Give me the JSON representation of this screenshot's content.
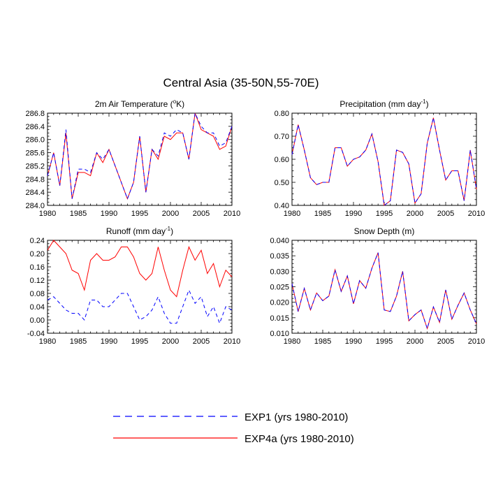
{
  "figure": {
    "title": "Central Asia (35-50N,55-70E)"
  },
  "legend": {
    "entries": [
      {
        "label": "EXP1 (yrs 1980-2010)",
        "color": "#0000ff",
        "style": "dashed"
      },
      {
        "label": "EXP4a (yrs 1980-2010)",
        "color": "#ff0000",
        "style": "solid"
      }
    ]
  },
  "chart_data": [
    {
      "type": "line",
      "title_main": "2m Air Temperature (",
      "title_sup": "o",
      "title_after": "K)",
      "xlim": [
        1980,
        2010
      ],
      "ylim": [
        284.0,
        286.8
      ],
      "xticks": [
        1980,
        1985,
        1990,
        1995,
        2000,
        2005,
        2010
      ],
      "yticks": [
        "284.0",
        "284.4",
        "284.8",
        "285.2",
        "285.6",
        "286.0",
        "286.4",
        "286.8"
      ],
      "x": [
        1980,
        1981,
        1982,
        1983,
        1984,
        1985,
        1986,
        1987,
        1988,
        1989,
        1990,
        1991,
        1992,
        1993,
        1994,
        1995,
        1996,
        1997,
        1998,
        1999,
        2000,
        2001,
        2002,
        2003,
        2004,
        2005,
        2006,
        2007,
        2008,
        2009,
        2010
      ],
      "series": [
        {
          "name": "EXP1 (yrs 1980-2010)",
          "color": "#0000ff",
          "dashed": true,
          "values": [
            284.9,
            285.6,
            284.6,
            286.3,
            284.2,
            285.1,
            285.1,
            285.0,
            285.6,
            285.4,
            285.7,
            285.2,
            284.7,
            284.2,
            284.7,
            286.1,
            284.4,
            285.7,
            285.5,
            286.2,
            286.1,
            286.3,
            286.2,
            285.4,
            286.8,
            286.4,
            286.2,
            286.2,
            285.8,
            285.9,
            286.4
          ]
        },
        {
          "name": "EXP4a (yrs 1980-2010)",
          "color": "#ff0000",
          "dashed": false,
          "values": [
            284.9,
            285.6,
            284.6,
            286.2,
            284.2,
            285.0,
            285.0,
            284.9,
            285.6,
            285.3,
            285.7,
            285.2,
            284.7,
            284.2,
            284.7,
            286.1,
            284.4,
            285.7,
            285.4,
            286.1,
            286.0,
            286.2,
            286.2,
            285.4,
            286.8,
            286.3,
            286.2,
            286.1,
            285.7,
            285.8,
            286.4
          ]
        }
      ]
    },
    {
      "type": "line",
      "title_main": "Precipitation (mm day",
      "title_sup": "-1",
      "title_after": ")",
      "xlim": [
        1980,
        2010
      ],
      "ylim": [
        0.4,
        0.8
      ],
      "xticks": [
        1980,
        1985,
        1990,
        1995,
        2000,
        2005,
        2010
      ],
      "yticks": [
        "0.40",
        "0.50",
        "0.60",
        "0.70",
        "0.80"
      ],
      "x": [
        1980,
        1981,
        1982,
        1983,
        1984,
        1985,
        1986,
        1987,
        1988,
        1989,
        1990,
        1991,
        1992,
        1993,
        1994,
        1995,
        1996,
        1997,
        1998,
        1999,
        2000,
        2001,
        2002,
        2003,
        2004,
        2005,
        2006,
        2007,
        2008,
        2009,
        2010
      ],
      "series": [
        {
          "name": "EXP1 (yrs 1980-2010)",
          "color": "#0000ff",
          "dashed": true,
          "values": [
            0.62,
            0.75,
            0.64,
            0.52,
            0.49,
            0.5,
            0.5,
            0.65,
            0.65,
            0.57,
            0.6,
            0.61,
            0.64,
            0.71,
            0.59,
            0.4,
            0.42,
            0.64,
            0.63,
            0.58,
            0.41,
            0.45,
            0.67,
            0.78,
            0.64,
            0.51,
            0.55,
            0.55,
            0.42,
            0.64,
            0.47
          ]
        },
        {
          "name": "EXP4a (yrs 1980-2010)",
          "color": "#ff0000",
          "dashed": false,
          "values": [
            0.62,
            0.75,
            0.64,
            0.52,
            0.49,
            0.5,
            0.5,
            0.65,
            0.65,
            0.57,
            0.6,
            0.61,
            0.64,
            0.71,
            0.59,
            0.4,
            0.42,
            0.64,
            0.63,
            0.58,
            0.41,
            0.45,
            0.67,
            0.78,
            0.64,
            0.51,
            0.55,
            0.55,
            0.42,
            0.64,
            0.47
          ]
        }
      ]
    },
    {
      "type": "line",
      "title_main": "Runoff (mm day",
      "title_sup": "-1",
      "title_after": ")",
      "xlim": [
        1980,
        2010
      ],
      "ylim": [
        -0.04,
        0.24
      ],
      "xticks": [
        1980,
        1985,
        1990,
        1995,
        2000,
        2005,
        2010
      ],
      "yticks": [
        "-0.04",
        "0.00",
        "0.04",
        "0.08",
        "0.12",
        "0.16",
        "0.20",
        "0.24"
      ],
      "x": [
        1980,
        1981,
        1982,
        1983,
        1984,
        1985,
        1986,
        1987,
        1988,
        1989,
        1990,
        1991,
        1992,
        1993,
        1994,
        1995,
        1996,
        1997,
        1998,
        1999,
        2000,
        2001,
        2002,
        2003,
        2004,
        2005,
        2006,
        2007,
        2008,
        2009,
        2010
      ],
      "series": [
        {
          "name": "EXP1 (yrs 1980-2010)",
          "color": "#0000ff",
          "dashed": true,
          "values": [
            0.06,
            0.07,
            0.05,
            0.03,
            0.02,
            0.02,
            0.0,
            0.06,
            0.06,
            0.04,
            0.04,
            0.06,
            0.08,
            0.08,
            0.04,
            0.0,
            0.01,
            0.03,
            0.07,
            0.02,
            -0.01,
            -0.01,
            0.04,
            0.09,
            0.05,
            0.07,
            0.01,
            0.04,
            -0.01,
            0.04,
            0.03
          ]
        },
        {
          "name": "EXP4a (yrs 1980-2010)",
          "color": "#ff0000",
          "dashed": false,
          "values": [
            0.21,
            0.24,
            0.22,
            0.2,
            0.15,
            0.14,
            0.09,
            0.18,
            0.2,
            0.18,
            0.18,
            0.19,
            0.22,
            0.22,
            0.19,
            0.14,
            0.12,
            0.14,
            0.22,
            0.15,
            0.09,
            0.07,
            0.15,
            0.22,
            0.18,
            0.21,
            0.14,
            0.17,
            0.1,
            0.15,
            0.13
          ]
        }
      ]
    },
    {
      "type": "line",
      "title_main": "Snow Depth (m)",
      "title_sup": "",
      "title_after": "",
      "xlim": [
        1980,
        2010
      ],
      "ylim": [
        0.01,
        0.04
      ],
      "xticks": [
        1980,
        1985,
        1990,
        1995,
        2000,
        2005,
        2010
      ],
      "yticks": [
        "0.010",
        "0.015",
        "0.020",
        "0.025",
        "0.030",
        "0.035",
        "0.040"
      ],
      "x": [
        1980,
        1981,
        1982,
        1983,
        1984,
        1985,
        1986,
        1987,
        1988,
        1989,
        1990,
        1991,
        1992,
        1993,
        1994,
        1995,
        1996,
        1997,
        1998,
        1999,
        2000,
        2001,
        2002,
        2003,
        2004,
        2005,
        2006,
        2007,
        2008,
        2009,
        2010
      ],
      "series": [
        {
          "name": "EXP1 (yrs 1980-2010)",
          "color": "#0000ff",
          "dashed": true,
          "values": [
            0.026,
            0.017,
            0.0245,
            0.0175,
            0.023,
            0.0205,
            0.022,
            0.0305,
            0.0235,
            0.0285,
            0.0195,
            0.027,
            0.0245,
            0.031,
            0.036,
            0.0175,
            0.017,
            0.022,
            0.03,
            0.014,
            0.016,
            0.0175,
            0.0115,
            0.0185,
            0.0135,
            0.024,
            0.0145,
            0.019,
            0.023,
            0.0175,
            0.013
          ]
        },
        {
          "name": "EXP4a (yrs 1980-2010)",
          "color": "#ff0000",
          "dashed": false,
          "values": [
            0.026,
            0.017,
            0.0245,
            0.0175,
            0.023,
            0.0205,
            0.022,
            0.0305,
            0.0235,
            0.0285,
            0.0195,
            0.027,
            0.0245,
            0.031,
            0.036,
            0.0175,
            0.017,
            0.022,
            0.03,
            0.014,
            0.016,
            0.0175,
            0.0115,
            0.0185,
            0.0135,
            0.024,
            0.0145,
            0.019,
            0.023,
            0.0175,
            0.013
          ]
        }
      ]
    }
  ]
}
